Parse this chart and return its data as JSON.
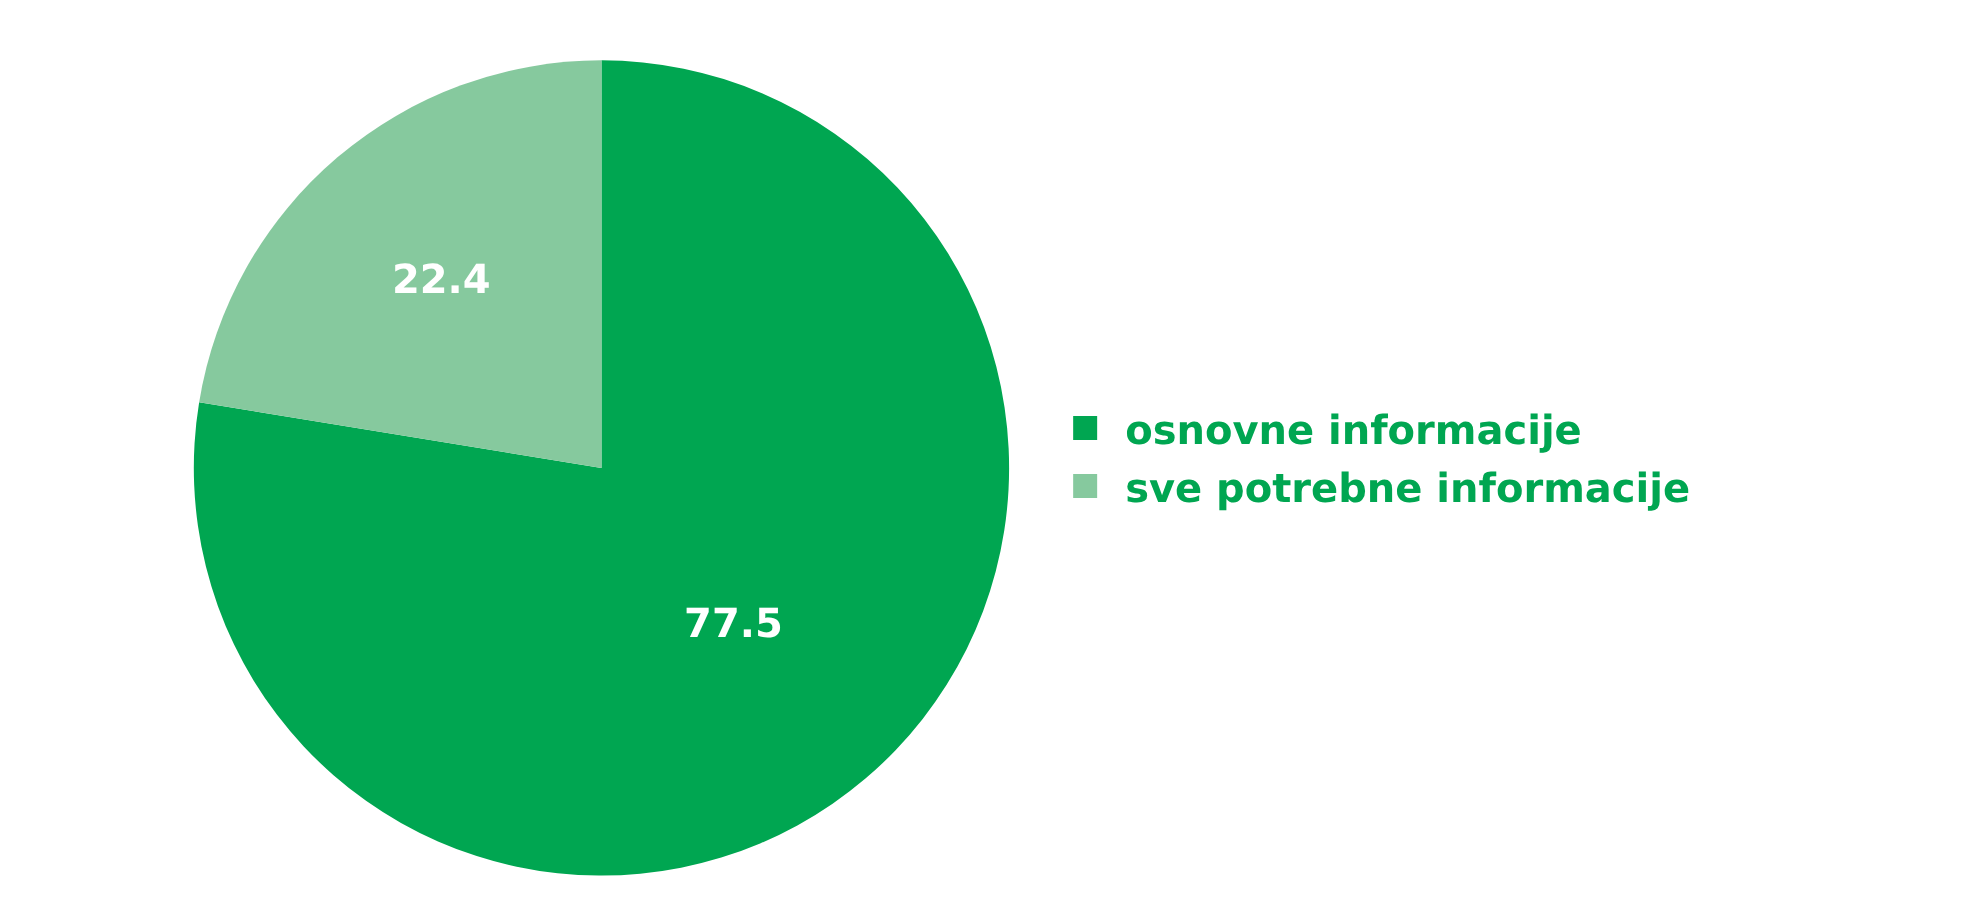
{
  "chart_data": {
    "type": "pie",
    "categories": [
      "osnovne informacije",
      "sve potrebne informacije"
    ],
    "values": [
      77.5,
      22.4
    ],
    "colors": [
      "#00a651",
      "#86c99e"
    ],
    "data_labels": true,
    "legend": "right"
  }
}
